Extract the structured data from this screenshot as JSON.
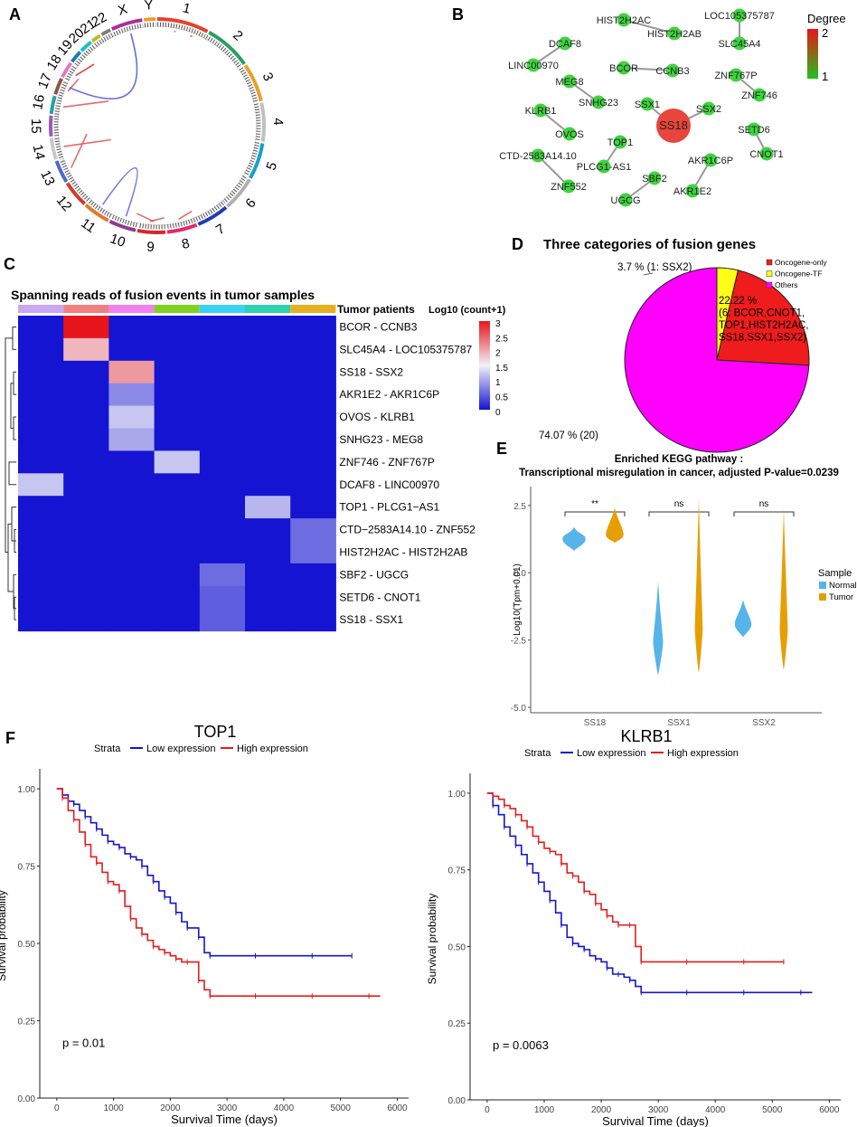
{
  "panel_labels": [
    "A",
    "B",
    "C",
    "D",
    "E",
    "F"
  ],
  "panel_a": {
    "chromosomes": [
      "1",
      "2",
      "3",
      "4",
      "5",
      "6",
      "7",
      "8",
      "9",
      "10",
      "11",
      "12",
      "13",
      "14",
      "15",
      "16",
      "17",
      "18",
      "19",
      "20",
      "21",
      "22",
      "X",
      "Y"
    ],
    "chrom_colors": [
      "#e8412b",
      "#2b9e64",
      "#e8a02b",
      "#c0c0c0",
      "#17a0c8",
      "#b0b0b0",
      "#1d3db5",
      "#e02b6a",
      "#d62728",
      "#8f3b8f",
      "#e07b2b",
      "#d23b2b",
      "#4b6bd2",
      "#c8c8c8",
      "#9b59b6",
      "#2ba0a0",
      "#8c564b",
      "#e377c2",
      "#1f77b4",
      "#17becf",
      "#bcbd22",
      "#7f7f7f",
      "#aa2e9b",
      "#e8a02b"
    ]
  },
  "panel_b": {
    "legend_title": "Degree",
    "legend_max": "2",
    "legend_min": "1",
    "nodes": [
      {
        "id": "HIST2H2AC",
        "label": "HIST2H2AC"
      },
      {
        "id": "HIST2H2AB",
        "label": "HIST2H2AB"
      },
      {
        "id": "LOC105375787",
        "label": "LOC105375787"
      },
      {
        "id": "SLC45A4",
        "label": "SLC45A4"
      },
      {
        "id": "DCAF8",
        "label": "DCAF8"
      },
      {
        "id": "LINC00970",
        "label": "LINC00970"
      },
      {
        "id": "BCOR",
        "label": "BCOR"
      },
      {
        "id": "CCNB3",
        "label": "CCNB3"
      },
      {
        "id": "ZNF767P",
        "label": "ZNF767P"
      },
      {
        "id": "ZNF746",
        "label": "ZNF746"
      },
      {
        "id": "MEG8",
        "label": "MEG8"
      },
      {
        "id": "SNHG23",
        "label": "SNHG23"
      },
      {
        "id": "SSX1",
        "label": "SSX1"
      },
      {
        "id": "SS18",
        "label": "SS18"
      },
      {
        "id": "SSX2",
        "label": "SSX2"
      },
      {
        "id": "KLRB1",
        "label": "KLRB1"
      },
      {
        "id": "OVOS",
        "label": "OVOS"
      },
      {
        "id": "SETD6",
        "label": "SETD6"
      },
      {
        "id": "CNOT1",
        "label": "CNOT1"
      },
      {
        "id": "TOP1",
        "label": "TOP1"
      },
      {
        "id": "CTD-2583A14.10",
        "label": "CTD-2583A14.10"
      },
      {
        "id": "PLCG1-AS1",
        "label": "PLCG1-AS1"
      },
      {
        "id": "AKR1C6P",
        "label": "AKR1C6P"
      },
      {
        "id": "SBF2",
        "label": "SBF2"
      },
      {
        "id": "ZNF552",
        "label": "ZNF552"
      },
      {
        "id": "AKR1E2",
        "label": "AKR1E2"
      },
      {
        "id": "UGCG",
        "label": "UGCG"
      }
    ],
    "edges": [
      [
        "HIST2H2AC",
        "HIST2H2AB"
      ],
      [
        "LOC105375787",
        "SLC45A4"
      ],
      [
        "DCAF8",
        "LINC00970"
      ],
      [
        "BCOR",
        "CCNB3"
      ],
      [
        "ZNF767P",
        "ZNF746"
      ],
      [
        "MEG8",
        "SNHG23"
      ],
      [
        "SSX1",
        "SS18"
      ],
      [
        "SS18",
        "SSX2"
      ],
      [
        "KLRB1",
        "OVOS"
      ],
      [
        "SETD6",
        "CNOT1"
      ],
      [
        "TOP1",
        "PLCG1-AS1"
      ],
      [
        "CTD-2583A14.10",
        "ZNF552"
      ],
      [
        "AKR1C6P",
        "AKR1E2"
      ],
      [
        "SBF2",
        "UGCG"
      ]
    ]
  },
  "panel_c": {
    "title": "Spanning reads of fusion events in tumor samples",
    "column_header": "Tumor patients",
    "legend_title": "Log10 (count+1)",
    "legend_ticks": [
      "3",
      "2.5",
      "2",
      "1.5",
      "1",
      "0.5",
      "0"
    ],
    "patient_colors": [
      "#c9a7f2",
      "#f08080",
      "#f080f0",
      "#7ed320",
      "#37d2f5",
      "#2fd2b0",
      "#e8b020"
    ],
    "rows": [
      "BCOR - CCNB3",
      "SLC45A4 - LOC105375787",
      "SS18 - SSX2",
      "AKR1E2 - AKR1C6P",
      "OVOS - KLRB1",
      "SNHG23 - MEG8",
      "ZNF746 - ZNF767P",
      "DCAF8 - LINC00970",
      "TOP1 - PLCG1−AS1",
      "CTD−2583A14.10 - ZNF552",
      "HIST2H2AC - HIST2H2AB",
      "SBF2 - UGCG",
      "SETD6 - CNOT1",
      "SS18 - SSX1"
    ],
    "values": [
      [
        0,
        3.0,
        0,
        0,
        0,
        0,
        0
      ],
      [
        0,
        1.9,
        0,
        0,
        0,
        0,
        0
      ],
      [
        0,
        0,
        2.1,
        0,
        0,
        0,
        0
      ],
      [
        0,
        0,
        0.8,
        0,
        0,
        0,
        0
      ],
      [
        0,
        0,
        1.2,
        0,
        0,
        0,
        0
      ],
      [
        0,
        0,
        1.0,
        0,
        0,
        0,
        0
      ],
      [
        0,
        0,
        0,
        1.2,
        0,
        0,
        0
      ],
      [
        1.2,
        0,
        0,
        0,
        0,
        0,
        0
      ],
      [
        0,
        0,
        0,
        0,
        0,
        1.1,
        0
      ],
      [
        0,
        0,
        0,
        0,
        0,
        0,
        0.6
      ],
      [
        0,
        0,
        0,
        0,
        0,
        0,
        0.6
      ],
      [
        0,
        0,
        0,
        0,
        0.6,
        0,
        0
      ],
      [
        0,
        0,
        0,
        0,
        0.5,
        0,
        0
      ],
      [
        0,
        0,
        0,
        0,
        0.5,
        0,
        0
      ]
    ]
  },
  "chart_data": [
    {
      "type": "pie",
      "title": "Three categories of fusion genes",
      "slices": [
        {
          "name": "Oncogene-only",
          "value": 22.22,
          "color": "#ee1c1c",
          "label_lines": [
            "22.22 %",
            "(6: BCOR,CNOT1,",
            "TOP1,HIST2H2AC,",
            "SS18,SSX1,SSX2)"
          ]
        },
        {
          "name": "Oncogene-TF",
          "value": 3.7,
          "color": "#ffff1a",
          "label_lines": [
            "3.7 % (1: SSX2)"
          ]
        },
        {
          "name": "Others",
          "value": 74.07,
          "color": "#ff00ff",
          "label_lines": [
            "74.07 % (20)"
          ]
        }
      ],
      "legend": [
        "Oncogene-only",
        "Oncogene-TF",
        "Others"
      ]
    },
    {
      "type": "violin",
      "title": "Enriched KEGG pathway :",
      "subtitle": "Transcriptional misregulation in cancer, adjusted P-value=0.0239",
      "ylabel": "Log10(Tpm+0.01)",
      "ylim": [
        -5.2,
        3.2
      ],
      "yticks": [
        "2.5",
        "0.0",
        "-2.5",
        "-5.0"
      ],
      "ytick_values": [
        2.5,
        0.0,
        -2.5,
        -5.0
      ],
      "categories": [
        "SS18",
        "SSX1",
        "SSX2"
      ],
      "significance": [
        "**",
        "ns",
        "ns"
      ],
      "legend_title": "Sample",
      "series": [
        {
          "name": "Normal",
          "color": "#56b4e9",
          "ranges": [
            [
              0.8,
              1.7
            ],
            [
              -3.8,
              -0.3
            ],
            [
              -2.4,
              -1.0
            ]
          ]
        },
        {
          "name": "Tumor",
          "color": "#e69f00",
          "ranges": [
            [
              1.1,
              2.4
            ],
            [
              -3.7,
              2.8
            ],
            [
              -3.6,
              2.4
            ]
          ]
        }
      ]
    },
    {
      "type": "line",
      "title": "TOP1",
      "xlabel": "Survival Time (days)",
      "ylabel": "Survival probability",
      "xlim": [
        -300,
        6200
      ],
      "ylim": [
        0,
        1.05
      ],
      "xticks": [
        "0",
        "1000",
        "2000",
        "3000",
        "4000",
        "5000",
        "6000"
      ],
      "yticks": [
        "0.00",
        "0.25",
        "0.50",
        "0.75",
        "1.00"
      ],
      "legend_title": "Strata",
      "pvalue": "p = 0.01",
      "series": [
        {
          "name": "Low expression",
          "color": "#1515d0",
          "x": [
            0,
            100,
            200,
            300,
            400,
            500,
            600,
            700,
            800,
            900,
            1000,
            1100,
            1200,
            1300,
            1400,
            1500,
            1600,
            1700,
            1800,
            1900,
            2000,
            2100,
            2200,
            2300,
            2400,
            2500,
            2600,
            2700,
            3000,
            3500,
            4000,
            4500,
            5000,
            5200
          ],
          "y": [
            1.0,
            0.98,
            0.96,
            0.95,
            0.93,
            0.91,
            0.89,
            0.87,
            0.85,
            0.83,
            0.82,
            0.81,
            0.79,
            0.78,
            0.77,
            0.75,
            0.72,
            0.7,
            0.67,
            0.65,
            0.63,
            0.6,
            0.57,
            0.55,
            0.55,
            0.52,
            0.47,
            0.46,
            0.46,
            0.46,
            0.46,
            0.46,
            0.46,
            0.46
          ]
        },
        {
          "name": "High expression",
          "color": "#e61c1c",
          "x": [
            0,
            100,
            200,
            300,
            400,
            500,
            600,
            700,
            800,
            900,
            1000,
            1100,
            1200,
            1300,
            1400,
            1500,
            1600,
            1700,
            1800,
            1900,
            2000,
            2100,
            2200,
            2300,
            2400,
            2500,
            2600,
            2700,
            3000,
            3500,
            4000,
            4500,
            5000,
            5500,
            5700
          ],
          "y": [
            1.0,
            0.97,
            0.93,
            0.9,
            0.86,
            0.82,
            0.78,
            0.76,
            0.73,
            0.7,
            0.69,
            0.67,
            0.62,
            0.58,
            0.55,
            0.53,
            0.51,
            0.49,
            0.48,
            0.47,
            0.46,
            0.45,
            0.44,
            0.44,
            0.44,
            0.38,
            0.35,
            0.33,
            0.33,
            0.33,
            0.33,
            0.33,
            0.33,
            0.33,
            0.33
          ]
        }
      ]
    },
    {
      "type": "line",
      "title": "KLRB1",
      "xlabel": "Survival Time (days)",
      "ylabel": "Survival probability",
      "xlim": [
        -300,
        6200
      ],
      "ylim": [
        0,
        1.05
      ],
      "xticks": [
        "0",
        "1000",
        "2000",
        "3000",
        "4000",
        "5000",
        "6000"
      ],
      "yticks": [
        "0.00",
        "0.25",
        "0.50",
        "0.75",
        "1.00"
      ],
      "legend_title": "Strata",
      "pvalue": "p = 0.0063",
      "series": [
        {
          "name": "Low expression",
          "color": "#1515d0",
          "x": [
            0,
            100,
            200,
            300,
            400,
            500,
            600,
            700,
            800,
            900,
            1000,
            1100,
            1200,
            1300,
            1400,
            1500,
            1600,
            1700,
            1800,
            1900,
            2000,
            2100,
            2200,
            2300,
            2400,
            2500,
            2600,
            2700,
            3000,
            3500,
            4000,
            4500,
            5000,
            5500,
            5700
          ],
          "y": [
            1.0,
            0.96,
            0.93,
            0.89,
            0.86,
            0.83,
            0.8,
            0.77,
            0.74,
            0.71,
            0.68,
            0.65,
            0.61,
            0.57,
            0.53,
            0.51,
            0.5,
            0.49,
            0.47,
            0.46,
            0.45,
            0.43,
            0.41,
            0.41,
            0.4,
            0.39,
            0.37,
            0.35,
            0.35,
            0.35,
            0.35,
            0.35,
            0.35,
            0.35,
            0.35
          ]
        },
        {
          "name": "High expression",
          "color": "#e61c1c",
          "x": [
            0,
            100,
            200,
            300,
            400,
            500,
            600,
            700,
            800,
            900,
            1000,
            1100,
            1200,
            1300,
            1400,
            1500,
            1600,
            1700,
            1800,
            1900,
            2000,
            2100,
            2200,
            2300,
            2400,
            2500,
            2600,
            2700,
            3000,
            3500,
            4000,
            4500,
            5000,
            5200
          ],
          "y": [
            1.0,
            0.99,
            0.98,
            0.96,
            0.95,
            0.93,
            0.91,
            0.89,
            0.86,
            0.84,
            0.82,
            0.81,
            0.8,
            0.77,
            0.74,
            0.73,
            0.71,
            0.68,
            0.67,
            0.64,
            0.62,
            0.6,
            0.58,
            0.57,
            0.57,
            0.57,
            0.5,
            0.45,
            0.45,
            0.45,
            0.45,
            0.45,
            0.45,
            0.45
          ]
        }
      ]
    }
  ]
}
